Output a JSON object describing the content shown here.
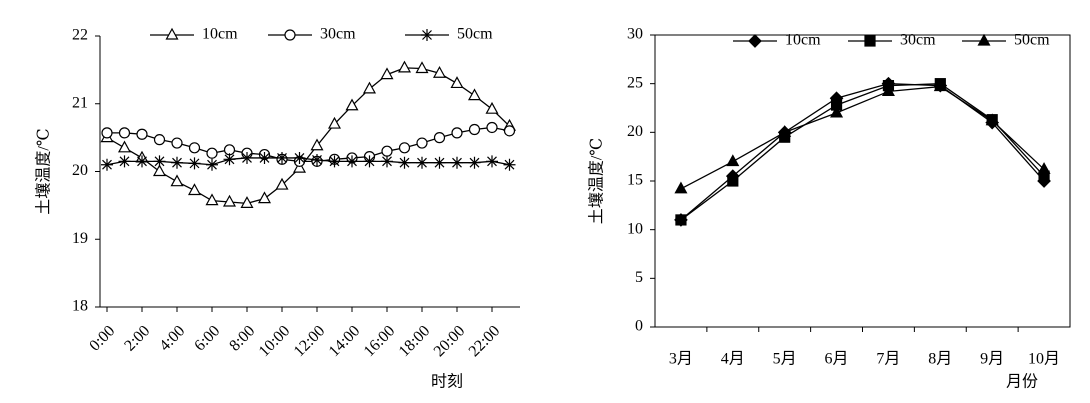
{
  "chart_data": [
    {
      "type": "line",
      "xlabel": "时刻",
      "ylabel": "土壤温度/℃",
      "x": [
        0,
        1,
        2,
        3,
        4,
        5,
        6,
        7,
        8,
        9,
        10,
        11,
        12,
        13,
        14,
        15,
        16,
        17,
        18,
        19,
        20,
        21,
        22,
        23
      ],
      "xlim": [
        -0.4,
        23.6
      ],
      "xticks": [
        {
          "value": 0,
          "label": "0:00"
        },
        {
          "value": 2,
          "label": "2:00"
        },
        {
          "value": 4,
          "label": "4:00"
        },
        {
          "value": 6,
          "label": "6:00"
        },
        {
          "value": 8,
          "label": "8:00"
        },
        {
          "value": 10,
          "label": "10:00"
        },
        {
          "value": 12,
          "label": "12:00"
        },
        {
          "value": 14,
          "label": "14:00"
        },
        {
          "value": 16,
          "label": "16:00"
        },
        {
          "value": 18,
          "label": "18:00"
        },
        {
          "value": 20,
          "label": "20:00"
        },
        {
          "value": 22,
          "label": "22:00"
        }
      ],
      "ylim": [
        18,
        22
      ],
      "yticks": [
        18,
        19,
        20,
        21,
        22
      ],
      "series": [
        {
          "name": "10cm",
          "color": "#000000",
          "marker": "open-triangle",
          "values": [
            20.5,
            20.35,
            20.2,
            20.0,
            19.85,
            19.72,
            19.57,
            19.55,
            19.53,
            19.6,
            19.8,
            20.05,
            20.38,
            20.7,
            20.97,
            21.22,
            21.43,
            21.53,
            21.52,
            21.45,
            21.3,
            21.12,
            20.92,
            20.67
          ]
        },
        {
          "name": "30cm",
          "color": "#000000",
          "marker": "open-circle",
          "values": [
            20.57,
            20.57,
            20.55,
            20.47,
            20.42,
            20.35,
            20.27,
            20.32,
            20.27,
            20.25,
            20.18,
            20.15,
            20.15,
            20.18,
            20.2,
            20.22,
            20.3,
            20.35,
            20.42,
            20.5,
            20.57,
            20.62,
            20.65,
            20.6
          ]
        },
        {
          "name": "50cm",
          "color": "#000000",
          "marker": "asterisk",
          "values": [
            20.1,
            20.15,
            20.15,
            20.15,
            20.13,
            20.12,
            20.1,
            20.18,
            20.2,
            20.2,
            20.2,
            20.2,
            20.17,
            20.15,
            20.15,
            20.15,
            20.15,
            20.13,
            20.13,
            20.13,
            20.13,
            20.13,
            20.15,
            20.1
          ]
        }
      ]
    },
    {
      "type": "line",
      "xlabel": "月份",
      "ylabel": "土壤温度/℃",
      "categories": [
        "3月",
        "4月",
        "5月",
        "6月",
        "7月",
        "8月",
        "9月",
        "10月"
      ],
      "ylim": [
        0,
        30
      ],
      "yticks": [
        0,
        5,
        10,
        15,
        20,
        25,
        30
      ],
      "series": [
        {
          "name": "10cm",
          "color": "#000000",
          "marker": "diamond",
          "values": [
            11,
            15.5,
            20,
            23.5,
            25,
            24.8,
            21,
            15
          ]
        },
        {
          "name": "30cm",
          "color": "#000000",
          "marker": "square",
          "values": [
            11,
            15,
            19.5,
            22.8,
            24.8,
            25,
            21.3,
            15.5
          ]
        },
        {
          "name": "50cm",
          "color": "#000000",
          "marker": "triangle",
          "values": [
            14.2,
            17,
            20,
            22,
            24.2,
            24.7,
            21.2,
            16.2
          ]
        }
      ]
    }
  ]
}
